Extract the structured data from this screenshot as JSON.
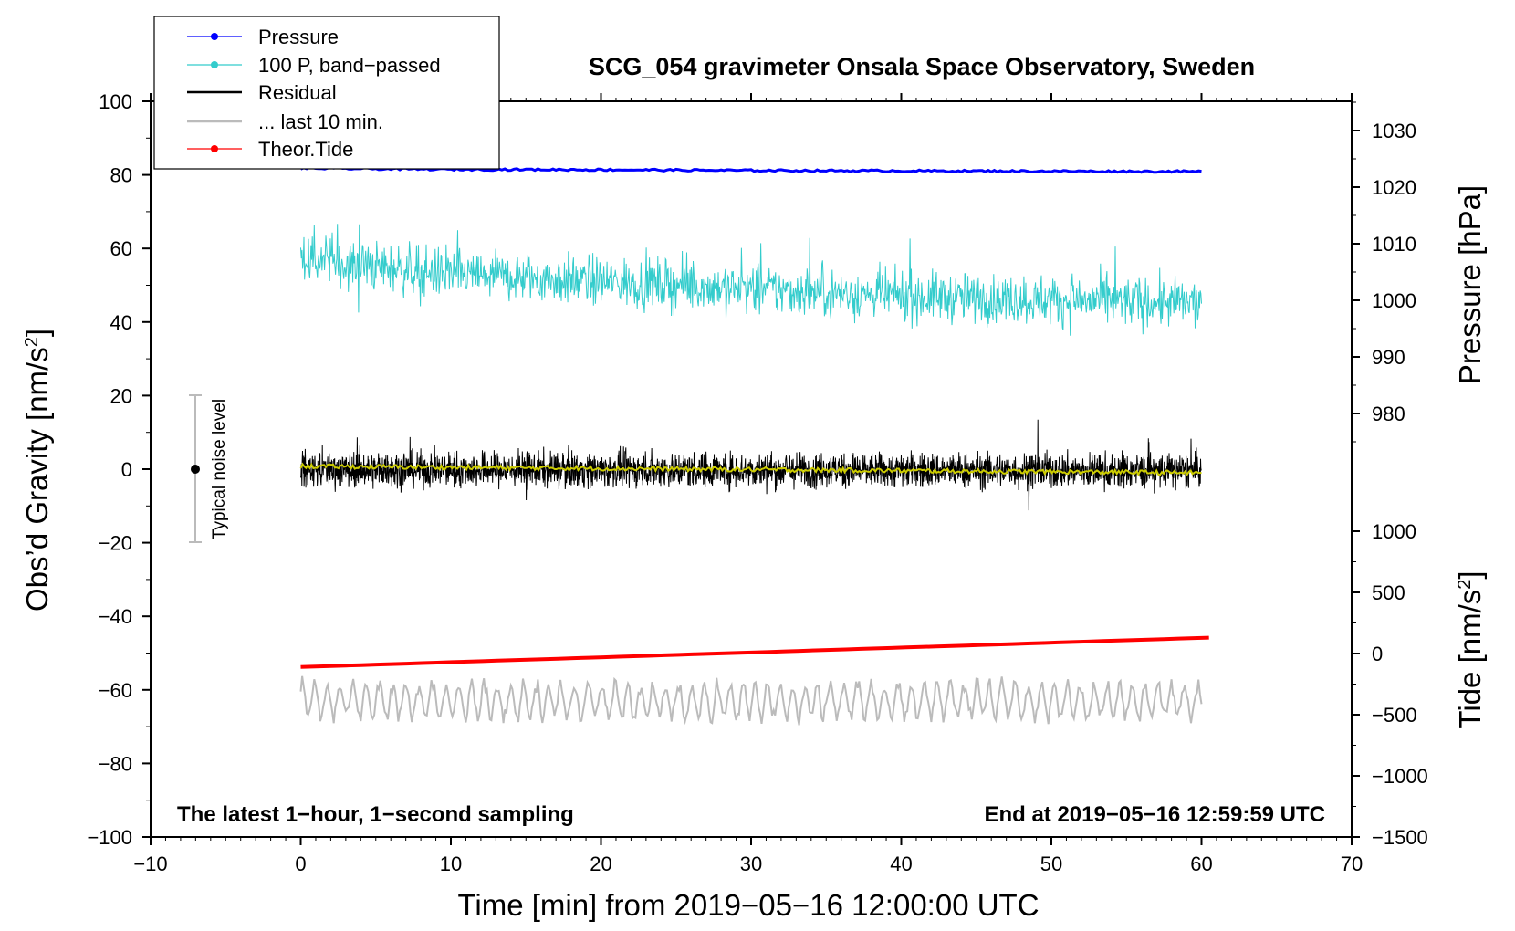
{
  "chart_data": {
    "type": "line",
    "title": "SCG_054 gravimeter Onsala Space Observatory, Sweden",
    "xlabel": "Time [min] from 2019−05−16 12:00:00 UTC",
    "ylabel_main": "Obs’d Gravity [nm/s",
    "ylabel_main_sup": "2",
    "ylabel_main_end": "]",
    "ylabel_pressure": "Pressure [hPa]",
    "ylabel_tide": "Tide [nm/s",
    "ylabel_tide_sup": "2",
    "ylabel_tide_end": "]",
    "xlim": [
      -10,
      70
    ],
    "ylim": [
      -100,
      100
    ],
    "x_ticks": [
      "−10",
      "0",
      "10",
      "20",
      "30",
      "40",
      "50",
      "60",
      "70"
    ],
    "y_ticks": [
      "−100",
      "−80",
      "−60",
      "−40",
      "−20",
      "0",
      "20",
      "40",
      "60",
      "80",
      "100"
    ],
    "pressure_ticks": [
      "980",
      "990",
      "1000",
      "1010",
      "1020",
      "1030"
    ],
    "tide_ticks": [
      "−1500",
      "−1000",
      "−500",
      "0",
      "500",
      "1000"
    ],
    "annotation_left": "The latest 1−hour, 1−second sampling",
    "annotation_right": "End at 2019−05−16 12:59:59 UTC",
    "noise_label": "Typical noise level",
    "noise_bar": {
      "x": -7,
      "center": 0,
      "half_range": 20
    },
    "legend": [
      {
        "label": "Pressure",
        "color": "#0000ff",
        "marker": true
      },
      {
        "label": "100 P, band−passed",
        "color": "#33cccc",
        "marker": true
      },
      {
        "label": "Residual",
        "color": "#000000",
        "marker": false
      },
      {
        "label": "... last 10 min.",
        "color": "#bbbbbb",
        "marker": false
      },
      {
        "label": "Theor.Tide",
        "color": "#ff0000",
        "marker": true
      }
    ],
    "series": [
      {
        "name": "Pressure",
        "color": "#0000ff",
        "axis": "gravity-scale",
        "x": [
          0,
          10,
          20,
          30,
          40,
          50,
          60
        ],
        "values": [
          81.8,
          81.5,
          81.4,
          81.2,
          81.1,
          81.0,
          80.9
        ]
      },
      {
        "name": "100 P, band-passed",
        "color": "#33cccc",
        "axis": "gravity-scale",
        "x": [
          0,
          10,
          20,
          30,
          40,
          50,
          60
        ],
        "values": [
          57,
          53,
          51,
          49,
          47,
          46,
          45
        ],
        "noise_amplitude": 7
      },
      {
        "name": "Residual",
        "color": "#000000",
        "axis": "gravity-scale",
        "x": [
          0,
          60
        ],
        "values": [
          0,
          -0.5
        ],
        "noise_amplitude": 6
      },
      {
        "name": "Residual smoothed",
        "color": "#cccc00",
        "axis": "gravity-scale",
        "x": [
          0,
          60
        ],
        "values": [
          0.8,
          -1.0
        ]
      },
      {
        "name": "Theor.Tide",
        "color": "#ff0000",
        "axis": "gravity-scale",
        "x": [
          0,
          60.5
        ],
        "values": [
          -53.8,
          -45.8
        ]
      },
      {
        "name": "... last 10 min.",
        "color": "#bbbbbb",
        "axis": "gravity-scale",
        "x": [
          0,
          60
        ],
        "values": [
          -63,
          -63
        ],
        "noise_amplitude": 5
      }
    ]
  }
}
